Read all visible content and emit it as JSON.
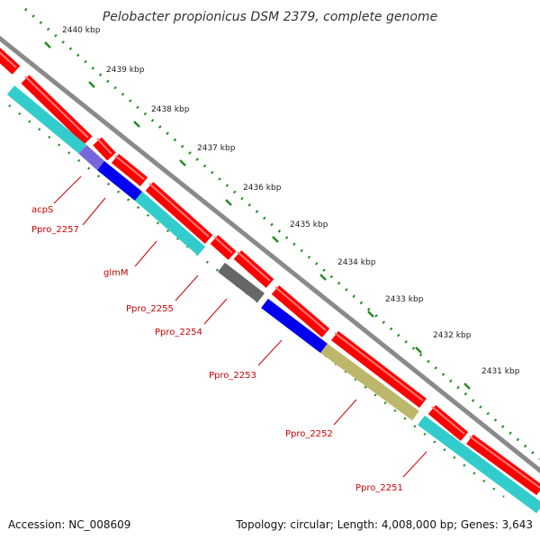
{
  "title": "Pelobacter propionicus DSM 2379, complete genome",
  "footer": {
    "accession": "Accession: NC_008609",
    "summary": "Topology: circular; Length: 4,008,000 bp; Genes: 3,643"
  },
  "colors": {
    "backbone": "#8a8a8a",
    "forward_cds": "#ff0000",
    "reverse_cds": "#33cccc",
    "blue_cds": "#0000ee",
    "purple_cds": "#7766dd",
    "gray_cds": "#666666",
    "olive_cds": "#bdb76b",
    "ruler": "#228b22",
    "label": "#cc0000"
  },
  "ruler": {
    "unit": "kbp",
    "ticks": [
      {
        "kbp": 2440,
        "label": "2440 kbp"
      },
      {
        "kbp": 2439,
        "label": "2439 kbp"
      },
      {
        "kbp": 2438,
        "label": "2438 kbp"
      },
      {
        "kbp": 2437,
        "label": "2437 kbp"
      },
      {
        "kbp": 2436,
        "label": "2436 kbp"
      },
      {
        "kbp": 2435,
        "label": "2435 kbp"
      },
      {
        "kbp": 2434,
        "label": "2434 kbp"
      },
      {
        "kbp": 2433,
        "label": "2433 kbp"
      },
      {
        "kbp": 2432,
        "label": "2432 kbp"
      },
      {
        "kbp": 2431,
        "label": "2431 kbp"
      }
    ]
  },
  "genes": [
    {
      "name": "acpS",
      "label": "acpS"
    },
    {
      "name": "Ppro_2257",
      "label": "Ppro_2257"
    },
    {
      "name": "glmM",
      "label": "glmM"
    },
    {
      "name": "Ppro_2255",
      "label": "Ppro_2255"
    },
    {
      "name": "Ppro_2254",
      "label": "Ppro_2254"
    },
    {
      "name": "Ppro_2253",
      "label": "Ppro_2253"
    },
    {
      "name": "Ppro_2252",
      "label": "Ppro_2252"
    },
    {
      "name": "Ppro_2251",
      "label": "Ppro_2251"
    }
  ]
}
